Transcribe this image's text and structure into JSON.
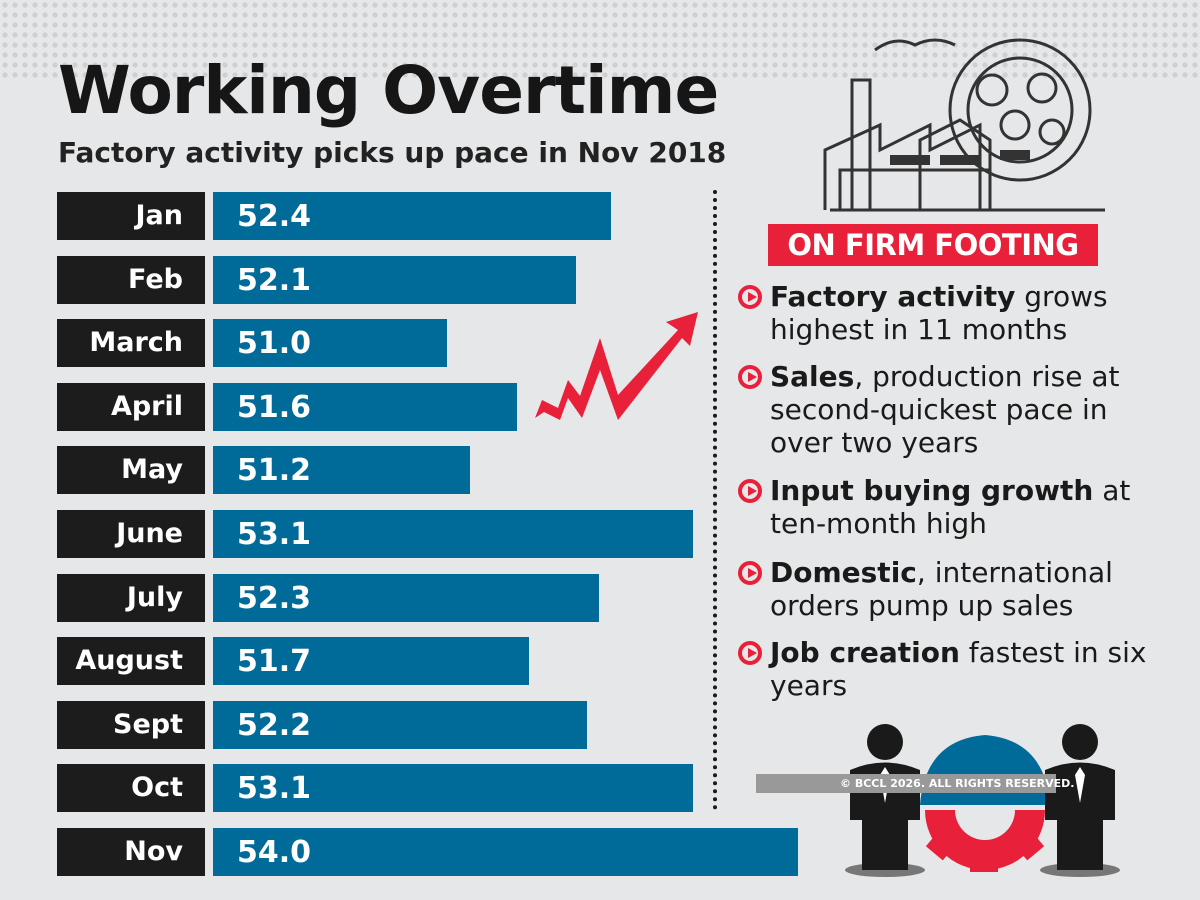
{
  "title": "Working Overtime",
  "subtitle": "Factory activity picks up pace in Nov 2018",
  "chart_data": {
    "type": "bar",
    "orientation": "horizontal",
    "title": "Working Overtime",
    "subtitle": "Factory activity picks up pace in Nov 2018",
    "categories": [
      "Jan",
      "Feb",
      "March",
      "April",
      "May",
      "June",
      "July",
      "August",
      "Sept",
      "Oct",
      "Nov"
    ],
    "values": [
      52.4,
      52.1,
      51.0,
      51.6,
      51.2,
      53.1,
      52.3,
      51.7,
      52.2,
      53.1,
      54.0
    ],
    "labels": [
      "52.4",
      "52.1",
      "51.0",
      "51.6",
      "51.2",
      "53.1",
      "52.3",
      "51.7",
      "52.2",
      "53.1",
      "54.0"
    ],
    "xlim": [
      49,
      54.1
    ],
    "bar_color": "#006a98",
    "label_box_color": "#1c1c1c"
  },
  "sidebar": {
    "heading": "ON FIRM FOOTING",
    "heading_color": "#e8203a",
    "bullets": [
      {
        "bold": "Factory activity",
        "text": " grows highest in 11 months"
      },
      {
        "bold": "Sales",
        "text": ", production rise at second-quickest pace in over two years"
      },
      {
        "bold": "Input buying growth",
        "text": " at ten-month high"
      },
      {
        "bold": "Domestic",
        "text": ", international orders pump up sales"
      },
      {
        "bold": "Job creation",
        "text": " fastest in six years"
      }
    ]
  },
  "copyright": "© BCCL 2026. ALL RIGHTS RESERVED.",
  "icons": [
    "factory-gear-illustration",
    "rising-arrow",
    "workers-hardhat-gear-illustration"
  ]
}
